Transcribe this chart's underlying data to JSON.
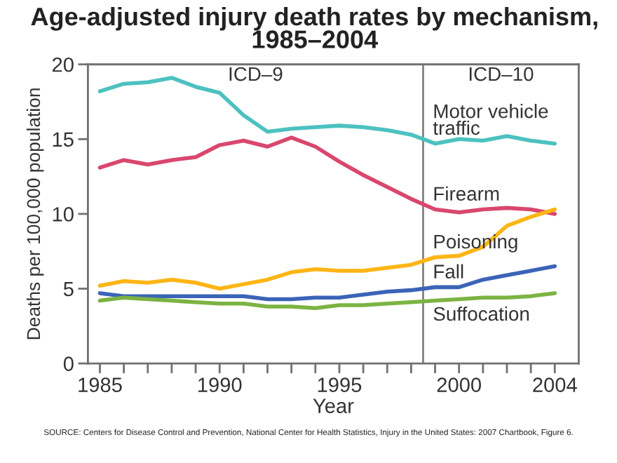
{
  "chart_data": {
    "type": "line",
    "title": "Age-adjusted injury death rates by mechanism,\n1985–2004",
    "xlabel": "Year",
    "ylabel": "Deaths per 100,000 population",
    "x": [
      1985,
      1986,
      1987,
      1988,
      1989,
      1990,
      1991,
      1992,
      1993,
      1994,
      1995,
      1996,
      1997,
      1998,
      1999,
      2000,
      2001,
      2002,
      2003,
      2004
    ],
    "series": [
      {
        "name": "Motor vehicle\ntraffic",
        "color": "#4cc1c0",
        "values": [
          18.2,
          18.7,
          18.8,
          19.1,
          18.5,
          18.1,
          16.6,
          15.5,
          15.7,
          15.8,
          15.9,
          15.8,
          15.6,
          15.3,
          14.7,
          15.0,
          14.9,
          15.2,
          14.9,
          14.7
        ]
      },
      {
        "name": "Firearm",
        "color": "#d9476d",
        "values": [
          13.1,
          13.6,
          13.3,
          13.6,
          13.8,
          14.6,
          14.9,
          14.5,
          15.1,
          14.5,
          13.5,
          12.6,
          11.8,
          11.0,
          10.3,
          10.1,
          10.3,
          10.4,
          10.3,
          10.0
        ]
      },
      {
        "name": "Poisoning",
        "color": "#fdb515",
        "values": [
          5.2,
          5.5,
          5.4,
          5.6,
          5.4,
          5.0,
          5.3,
          5.6,
          6.1,
          6.3,
          6.2,
          6.2,
          6.4,
          6.6,
          7.1,
          7.2,
          7.8,
          9.2,
          9.8,
          10.3
        ]
      },
      {
        "name": "Fall",
        "color": "#3b64b8",
        "values": [
          4.7,
          4.5,
          4.5,
          4.5,
          4.5,
          4.5,
          4.5,
          4.3,
          4.3,
          4.4,
          4.4,
          4.6,
          4.8,
          4.9,
          5.1,
          5.1,
          5.6,
          5.9,
          6.2,
          6.5
        ]
      },
      {
        "name": "Suffocation",
        "color": "#7cb342",
        "values": [
          4.2,
          4.4,
          4.3,
          4.2,
          4.1,
          4.0,
          4.0,
          3.8,
          3.8,
          3.7,
          3.9,
          3.9,
          4.0,
          4.1,
          4.2,
          4.3,
          4.4,
          4.4,
          4.5,
          4.7
        ]
      }
    ],
    "xlim": [
      1984.5,
      2005
    ],
    "ylim": [
      0,
      20
    ],
    "xticks": [
      1985,
      {
        "value": 1986,
        "label": null
      },
      {
        "value": 1987,
        "label": null
      },
      {
        "value": 1988,
        "label": null
      },
      {
        "value": 1989,
        "label": null
      },
      1990,
      {
        "value": 1991,
        "label": null
      },
      {
        "value": 1992,
        "label": null
      },
      {
        "value": 1993,
        "label": null
      },
      {
        "value": 1994,
        "label": null
      },
      1995,
      {
        "value": 1996,
        "label": null
      },
      {
        "value": 1997,
        "label": null
      },
      {
        "value": 1998,
        "label": null
      },
      {
        "value": 1999,
        "label": null
      },
      2000,
      {
        "value": 2001,
        "label": null
      },
      {
        "value": 2002,
        "label": null
      },
      {
        "value": 2003,
        "label": null
      },
      2004
    ],
    "yticks": [
      0,
      5,
      10,
      15,
      20
    ],
    "ref_lines": [
      {
        "axis": "x",
        "value": 1998.5,
        "color": "#808080"
      }
    ],
    "annotations": [
      "ICD–9",
      "ICD–10",
      "SOURCE: Centers for Disease Control and Prevention, National Center for Health Statistics, Injury in the United States: 2007 Chartbook, Figure 6."
    ],
    "line_style": "solid",
    "marker": "none"
  }
}
